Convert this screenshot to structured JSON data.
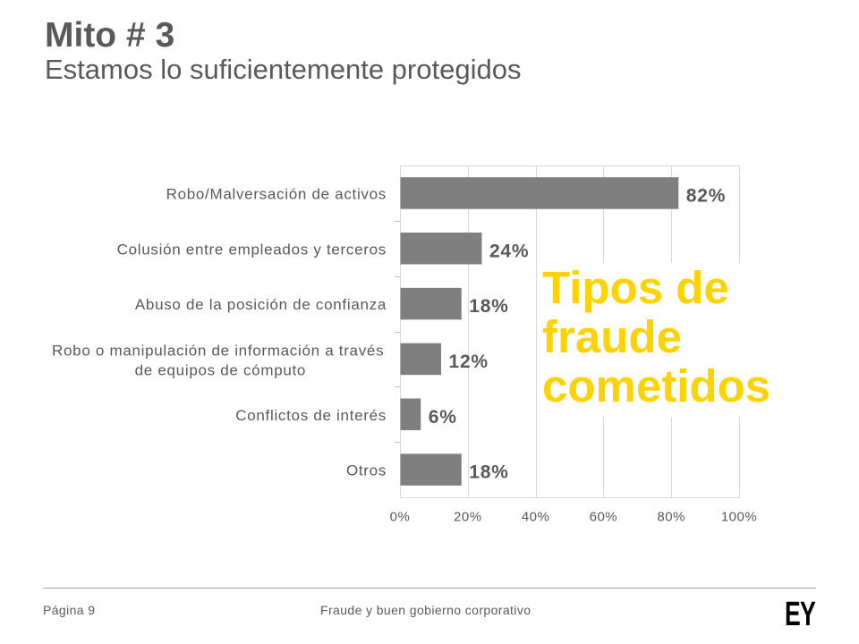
{
  "slide": {
    "title": "Mito # 3",
    "subtitle": "Estamos lo suficientemente protegidos"
  },
  "callout": {
    "lines": [
      "Tipos de",
      "fraude",
      "cometidos"
    ]
  },
  "chart_data": {
    "type": "bar",
    "orientation": "horizontal",
    "categories": [
      "Robo/Malversación de activos",
      "Colusión entre empleados y terceros",
      "Abuso de la posición de confianza",
      "Robo o manipulación de información a través de equipos de cómputo",
      "Conflictos de interés",
      "Otros"
    ],
    "values": [
      82,
      24,
      18,
      12,
      6,
      18
    ],
    "data_labels": [
      "82%",
      "24%",
      "18%",
      "12%",
      "6%",
      "18%"
    ],
    "xlim": [
      0,
      100
    ],
    "xticks": [
      0,
      20,
      40,
      60,
      80,
      100
    ],
    "xtick_labels": [
      "0%",
      "20%",
      "40%",
      "60%",
      "80%",
      "100%"
    ],
    "grid": true,
    "legend": "none",
    "bar_color": "#7F7F7F",
    "grid_color": "#D9D9D9"
  },
  "footer": {
    "page": "Página 9",
    "center": "Fraude y buen gobierno corporativo"
  },
  "logo": {
    "text": "EY"
  },
  "colors": {
    "text": "#595959",
    "callout_text": "#FFD200",
    "footer_rule": "#A6A6A6",
    "logo": "#000000"
  }
}
